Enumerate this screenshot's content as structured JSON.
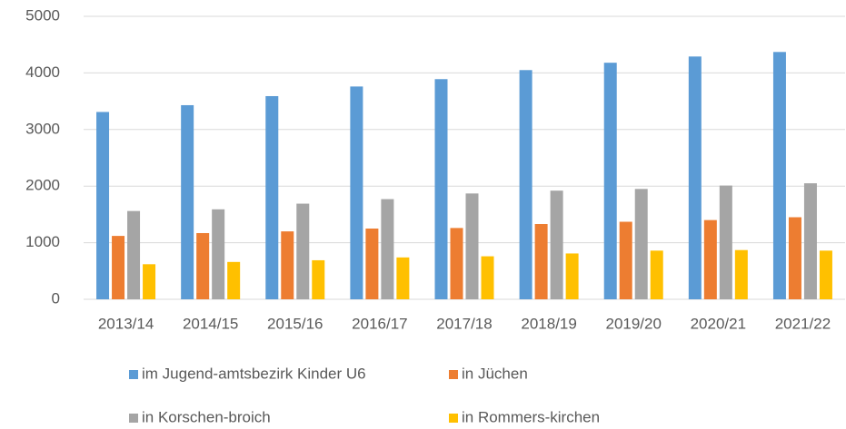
{
  "chart_data": {
    "type": "bar",
    "categories": [
      "2013/14",
      "2014/15",
      "2015/16",
      "2016/17",
      "2017/18",
      "2018/19",
      "2019/20",
      "2020/21",
      "2021/22"
    ],
    "series": [
      {
        "name": "im Jugend-amtsbezirk Kinder U6",
        "color": "#5b9bd5",
        "values": [
          3310,
          3430,
          3590,
          3760,
          3890,
          4050,
          4180,
          4290,
          4370
        ]
      },
      {
        "name": "in Jüchen",
        "color": "#ed7d31",
        "values": [
          1120,
          1170,
          1200,
          1250,
          1260,
          1330,
          1370,
          1400,
          1450
        ]
      },
      {
        "name": "in Korschen-broich",
        "color": "#a5a5a5",
        "values": [
          1560,
          1590,
          1690,
          1770,
          1870,
          1920,
          1950,
          2010,
          2050
        ]
      },
      {
        "name": "in Rommers-kirchen",
        "color": "#ffc000",
        "values": [
          620,
          660,
          690,
          740,
          760,
          810,
          860,
          870,
          860
        ]
      }
    ],
    "ylim": [
      0,
      5000
    ],
    "yticks": [
      0,
      1000,
      2000,
      3000,
      4000,
      5000
    ],
    "grid": true,
    "legend": "bottom"
  }
}
